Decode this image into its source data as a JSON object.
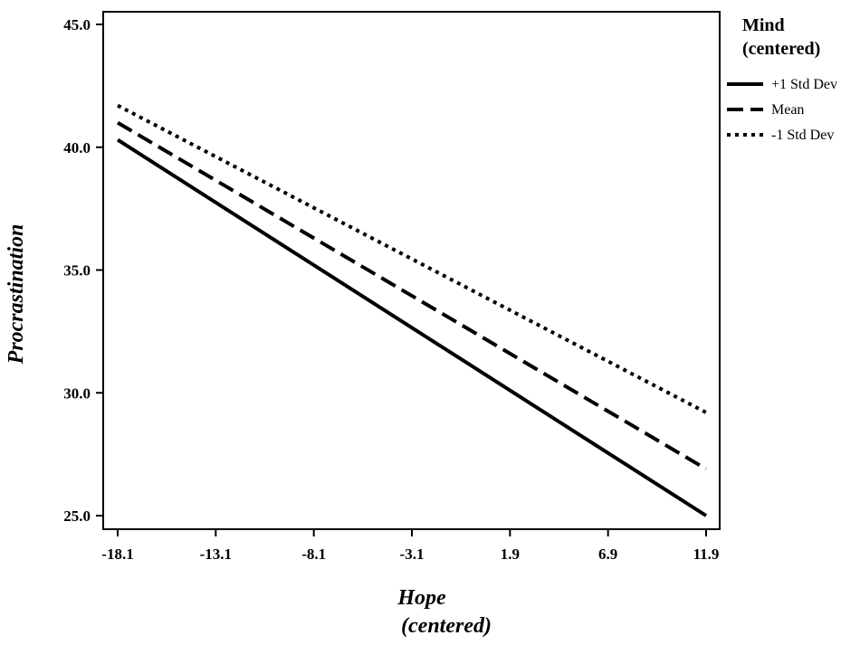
{
  "chart_data": {
    "type": "line",
    "title": "",
    "xlabel": "Hope",
    "xlabel_line2": "(centered)",
    "ylabel": "Procrastination",
    "x": [
      -18.1,
      -13.1,
      -8.1,
      -3.1,
      1.9,
      6.9,
      11.9
    ],
    "x_tick_labels": [
      "-18.1",
      "-13.1",
      "-8.1",
      "-3.1",
      "1.9",
      "6.9",
      "11.9"
    ],
    "y_ticks": [
      25.0,
      30.0,
      35.0,
      40.0,
      45.0
    ],
    "y_tick_labels": [
      "25.0",
      "30.0",
      "35.0",
      "40.0",
      "45.0"
    ],
    "xlim": [
      -18.1,
      11.9
    ],
    "ylim": [
      25.0,
      45.0
    ],
    "legend": {
      "title_line1": "Mind",
      "title_line2": "(centered)",
      "placement": "right"
    },
    "series": [
      {
        "name": "+1 Std Dev",
        "style": "solid",
        "x": [
          -18.1,
          11.9
        ],
        "values": [
          40.3,
          25.0
        ]
      },
      {
        "name": "Mean",
        "style": "dashed",
        "x": [
          -18.1,
          11.9
        ],
        "values": [
          41.0,
          26.9
        ]
      },
      {
        "name": "-1 Std Dev",
        "style": "dotted",
        "x": [
          -18.1,
          11.9
        ],
        "values": [
          41.7,
          29.2
        ]
      }
    ],
    "colors": {
      "line": "#000000",
      "background": "#ffffff"
    }
  }
}
